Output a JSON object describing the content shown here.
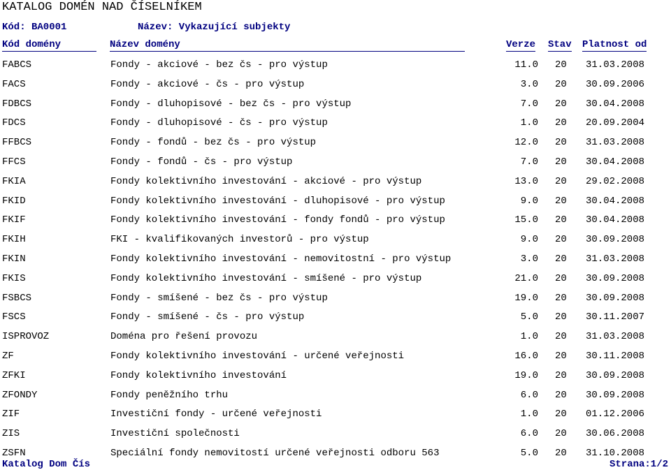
{
  "title": "KATALOG DOMÉN NAD ČÍSELNÍKEM",
  "meta": {
    "kod_label": "Kód: BA0001",
    "nazev_label": "Název: Vykazující subjekty"
  },
  "columns": {
    "code": "Kód domény",
    "name": "Název domény",
    "version": "Verze",
    "status": "Stav",
    "valid_from": "Platnost od"
  },
  "rows": [
    {
      "code": "FABCS",
      "name": "Fondy - akciové - bez čs - pro výstup",
      "version": "11.0",
      "status": "20",
      "valid_from": "31.03.2008"
    },
    {
      "code": "FACS",
      "name": "Fondy - akciové - čs - pro výstup",
      "version": "3.0",
      "status": "20",
      "valid_from": "30.09.2006"
    },
    {
      "code": "FDBCS",
      "name": "Fondy - dluhopisové - bez čs - pro výstup",
      "version": "7.0",
      "status": "20",
      "valid_from": "30.04.2008"
    },
    {
      "code": "FDCS",
      "name": "Fondy - dluhopisové - čs - pro výstup",
      "version": "1.0",
      "status": "20",
      "valid_from": "20.09.2004"
    },
    {
      "code": "FFBCS",
      "name": "Fondy - fondů - bez čs - pro výstup",
      "version": "12.0",
      "status": "20",
      "valid_from": "31.03.2008"
    },
    {
      "code": "FFCS",
      "name": "Fondy - fondů - čs - pro výstup",
      "version": "7.0",
      "status": "20",
      "valid_from": "30.04.2008"
    },
    {
      "code": "FKIA",
      "name": "Fondy kolektivního investování - akciové - pro výstup",
      "version": "13.0",
      "status": "20",
      "valid_from": "29.02.2008"
    },
    {
      "code": "FKID",
      "name": "Fondy kolektivního investování - dluhopisové - pro výstup",
      "version": "9.0",
      "status": "20",
      "valid_from": "30.04.2008"
    },
    {
      "code": "FKIF",
      "name": "Fondy kolektivního investování - fondy fondů - pro výstup",
      "version": "15.0",
      "status": "20",
      "valid_from": "30.04.2008"
    },
    {
      "code": "FKIH",
      "name": "FKI - kvalifikovaných investorů - pro výstup",
      "version": "9.0",
      "status": "20",
      "valid_from": "30.09.2008"
    },
    {
      "code": "FKIN",
      "name": "Fondy kolektivního investování - nemovitostní - pro výstup",
      "version": "3.0",
      "status": "20",
      "valid_from": "31.03.2008"
    },
    {
      "code": "FKIS",
      "name": "Fondy kolektivního investování - smíšené - pro výstup",
      "version": "21.0",
      "status": "20",
      "valid_from": "30.09.2008"
    },
    {
      "code": "FSBCS",
      "name": "Fondy - smíšené - bez čs - pro výstup",
      "version": "19.0",
      "status": "20",
      "valid_from": "30.09.2008"
    },
    {
      "code": "FSCS",
      "name": "Fondy - smíšené - čs - pro výstup",
      "version": "5.0",
      "status": "20",
      "valid_from": "30.11.2007"
    },
    {
      "code": "ISPROVOZ",
      "name": "Doména pro řešení provozu",
      "version": "1.0",
      "status": "20",
      "valid_from": "31.03.2008"
    },
    {
      "code": "ZF",
      "name": "Fondy kolektivního investování - určené veřejnosti",
      "version": "16.0",
      "status": "20",
      "valid_from": "30.11.2008"
    },
    {
      "code": "ZFKI",
      "name": "Fondy kolektivního investování",
      "version": "19.0",
      "status": "20",
      "valid_from": "30.09.2008"
    },
    {
      "code": "ZFONDY",
      "name": "Fondy peněžního trhu",
      "version": "6.0",
      "status": "20",
      "valid_from": "30.09.2008"
    },
    {
      "code": "ZIF",
      "name": "Investiční fondy - určené veřejnosti",
      "version": "1.0",
      "status": "20",
      "valid_from": "01.12.2006"
    },
    {
      "code": "ZIS",
      "name": "Investiční společnosti",
      "version": "6.0",
      "status": "20",
      "valid_from": "30.06.2008"
    },
    {
      "code": "ZSFN",
      "name": "Speciální fondy nemovitostí určené veřejnosti odboru 563",
      "version": "5.0",
      "status": "20",
      "valid_from": "31.10.2008"
    }
  ],
  "footer": {
    "left": "Katalog Dom Čís",
    "right": "Strana:1/2"
  }
}
